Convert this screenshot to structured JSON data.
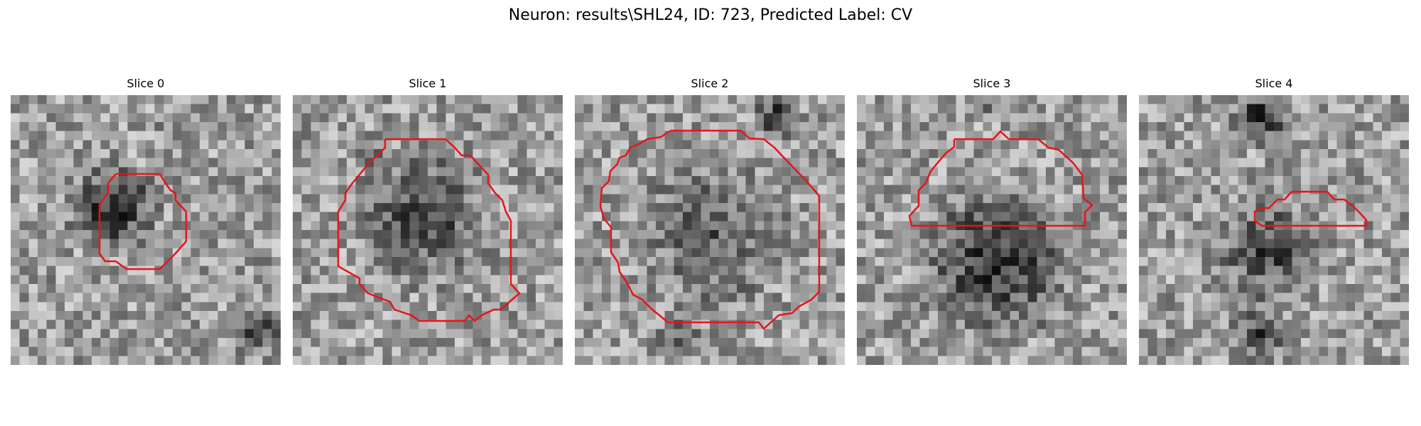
{
  "figure": {
    "title": "Neuron: results\\SHL24, ID: 723, Predicted Label: CV"
  },
  "colors": {
    "contour": "#e8141c",
    "background": "#ffffff"
  },
  "panels": [
    {
      "title": "Slice 0"
    },
    {
      "title": "Slice 1"
    },
    {
      "title": "Slice 2"
    },
    {
      "title": "Slice 3"
    },
    {
      "title": "Slice 4"
    }
  ]
}
